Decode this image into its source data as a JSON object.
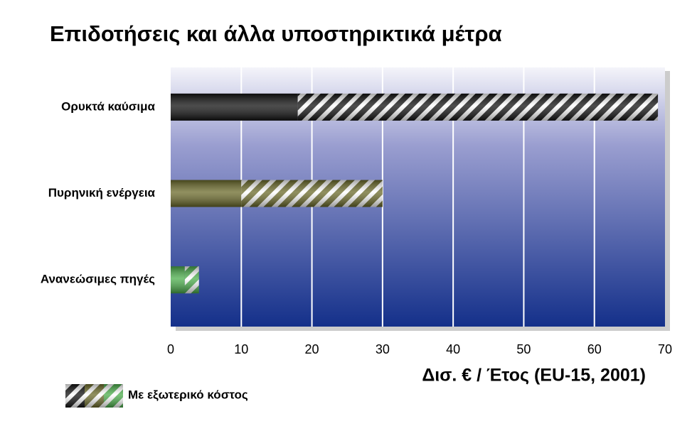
{
  "chart_data": {
    "type": "stacked-bar-horizontal",
    "title": "Επιδοτήσεις και άλλα υποστηρικτικά μέτρα",
    "categories": [
      "Ορυκτά καύσιμα",
      "Πυρηνική ενέργεια",
      "Ανανεώσιμες πηγές"
    ],
    "colors": [
      "#111111",
      "#6b6a2a",
      "#4cae4c"
    ],
    "series": [
      {
        "values": [
          18,
          10,
          2
        ]
      },
      {
        "name": "Με εξωτερικό κόστος",
        "values": [
          51,
          20,
          2
        ]
      }
    ],
    "xlim": [
      0,
      70
    ],
    "xticks": [
      0,
      10,
      20,
      30,
      40,
      50,
      60,
      70
    ],
    "x_label": "Δισ. € / Έτος (EU-15, 2001)",
    "grid": true
  }
}
